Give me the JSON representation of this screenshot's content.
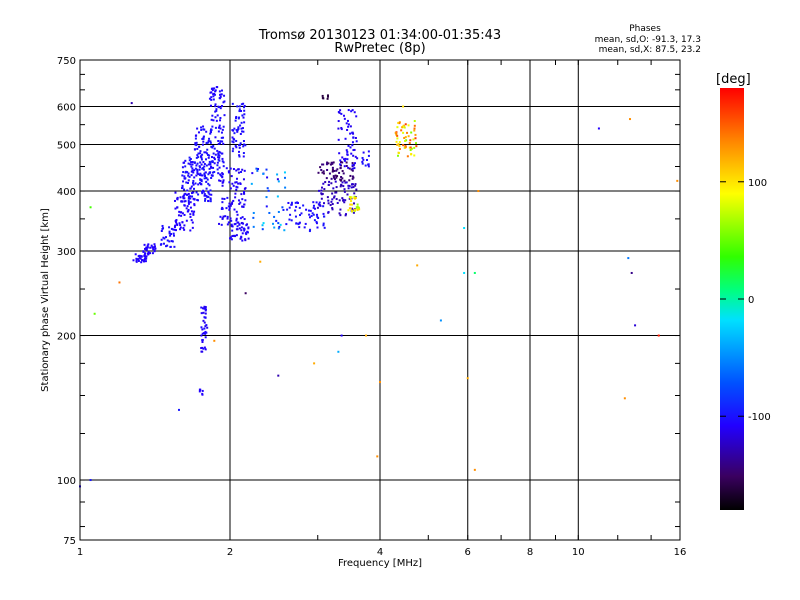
{
  "chart_data": {
    "type": "scatter",
    "title": "Tromsø 20130123 01:34:00-01:35:43",
    "subtitle": "RwPretec (8p)",
    "stats": {
      "header": "Phases",
      "o_line": "mean, sd,O: -91.3, 17.3",
      "x_line": "mean, sd,X:  87.5, 23.2"
    },
    "xlabel": "Frequency [MHz]",
    "ylabel": "Stationary phase Virtual Height [km]",
    "x_scale": "log",
    "y_scale": "log",
    "xlim": [
      1,
      16
    ],
    "ylim": [
      75,
      750
    ],
    "x_ticks": [
      1,
      2,
      4,
      6,
      8,
      10,
      16
    ],
    "x_tick_labels": [
      "1",
      "2",
      "4",
      "6",
      "8",
      "10",
      "16"
    ],
    "y_ticks": [
      75,
      100,
      200,
      300,
      400,
      500,
      600,
      750
    ],
    "y_tick_labels": [
      "75",
      "100",
      "200",
      "300",
      "400",
      "500",
      "600",
      "750"
    ],
    "grid": true,
    "colorbar": {
      "label": "[deg]",
      "min": -180,
      "max": 180,
      "ticks": [
        100,
        0,
        -100
      ],
      "tick_labels": [
        "100",
        "0",
        "-100"
      ]
    },
    "point_groups": [
      {
        "x": [
          1.0,
          1.05
        ],
        "y": [
          97,
          100
        ],
        "phase": [
          -110,
          -100
        ]
      },
      {
        "x": [
          1.05,
          1.07
        ],
        "y": [
          370,
          222
        ],
        "phase": [
          40,
          50
        ]
      },
      {
        "x": [
          1.2,
          1.27
        ],
        "y": [
          258,
          610
        ],
        "phase": [
          140,
          -130
        ]
      },
      {
        "x": [
          1.28,
          1.36
        ],
        "y": [
          283,
          297
        ],
        "phase": [
          -110,
          -110
        ],
        "n": 30
      },
      {
        "x": [
          1.34,
          1.43
        ],
        "y": [
          295,
          310
        ],
        "phase": [
          -110,
          -110
        ],
        "n": 30
      },
      {
        "x": [
          1.43,
          1.55
        ],
        "y": [
          305,
          340
        ],
        "phase": [
          -105,
          -105
        ],
        "n": 30
      },
      {
        "x": [
          1.55,
          1.7
        ],
        "y": [
          330,
          400
        ],
        "phase": [
          -110,
          -110
        ],
        "n": 70
      },
      {
        "x": [
          1.6,
          1.85
        ],
        "y": [
          380,
          470
        ],
        "phase": [
          -110,
          -100
        ],
        "n": 140
      },
      {
        "x": [
          1.7,
          1.95
        ],
        "y": [
          430,
          550
        ],
        "phase": [
          -110,
          -100
        ],
        "n": 130
      },
      {
        "x": [
          1.82,
          1.95
        ],
        "y": [
          560,
          660
        ],
        "phase": [
          -110,
          -105
        ],
        "n": 50
      },
      {
        "x": [
          1.9,
          2.15
        ],
        "y": [
          340,
          450
        ],
        "phase": [
          -115,
          -105
        ],
        "n": 100
      },
      {
        "x": [
          2.02,
          2.15
        ],
        "y": [
          470,
          610
        ],
        "phase": [
          -110,
          -100
        ],
        "n": 60
      },
      {
        "x": [
          2.0,
          2.2
        ],
        "y": [
          315,
          345
        ],
        "phase": [
          -115,
          -105
        ],
        "n": 40
      },
      {
        "x": [
          1.75,
          1.8
        ],
        "y": [
          185,
          230
        ],
        "phase": [
          -115,
          -105
        ],
        "n": 40
      },
      {
        "x": [
          1.73,
          1.82
        ],
        "y": [
          150,
          155
        ],
        "phase": [
          -110,
          -110
        ],
        "n": 6
      },
      {
        "x": [
          1.58,
          1.86
        ],
        "y": [
          140,
          195
        ],
        "phase": [
          -100,
          130
        ]
      },
      {
        "x": [
          2.2,
          2.6
        ],
        "y": [
          330,
          450
        ],
        "phase": [
          -120,
          -20
        ],
        "n": 40
      },
      {
        "x": [
          2.6,
          3.1
        ],
        "y": [
          330,
          380
        ],
        "phase": [
          -110,
          -100
        ],
        "n": 60
      },
      {
        "x": [
          3.0,
          3.6
        ],
        "y": [
          355,
          420
        ],
        "phase": [
          -130,
          -120
        ],
        "n": 80
      },
      {
        "x": [
          3.0,
          3.55
        ],
        "y": [
          420,
          460
        ],
        "phase": [
          -150,
          -140
        ],
        "n": 60
      },
      {
        "x": [
          3.3,
          3.6
        ],
        "y": [
          440,
          600
        ],
        "phase": [
          -115,
          -105
        ],
        "n": 60
      },
      {
        "x": [
          3.45,
          3.65
        ],
        "y": [
          360,
          390
        ],
        "phase": [
          60,
          110
        ],
        "n": 25
      },
      {
        "x": [
          3.65,
          3.9
        ],
        "y": [
          450,
          490
        ],
        "phase": [
          -110,
          -100
        ],
        "n": 12
      },
      {
        "x": [
          4.3,
          4.75
        ],
        "y": [
          470,
          560
        ],
        "phase": [
          50,
          160
        ],
        "n": 60
      },
      {
        "x": [
          3.05,
          3.15
        ],
        "y": [
          620,
          640
        ],
        "phase": [
          -160,
          -160
        ],
        "n": 6
      },
      {
        "x": [
          2.3,
          2.95,
          3.3,
          4.0,
          4.75,
          5.3,
          5.9,
          6.2,
          6.2,
          6.3
        ],
        "y": [
          285,
          175,
          185,
          160,
          280,
          215,
          335,
          270,
          105,
          400
        ],
        "phase": [
          120,
          120,
          -40,
          130,
          120,
          -50,
          -20,
          10,
          130,
          130
        ]
      },
      {
        "x": [
          3.35,
          3.75,
          3.95,
          4.45,
          5.9,
          6.0,
          2.5,
          2.15
        ],
        "y": [
          200,
          200,
          112,
          600,
          270,
          163,
          165,
          245
        ],
        "phase": [
          -110,
          120,
          130,
          100,
          -20,
          120,
          -130,
          -150
        ]
      },
      {
        "x": [
          11.0,
          12.4,
          12.6,
          12.7,
          12.8,
          13.0,
          14.5,
          15.8
        ],
        "y": [
          540,
          148,
          290,
          565,
          270,
          210,
          200,
          420
        ],
        "phase": [
          -110,
          130,
          -60,
          130,
          -140,
          -120,
          170,
          130
        ]
      }
    ]
  }
}
